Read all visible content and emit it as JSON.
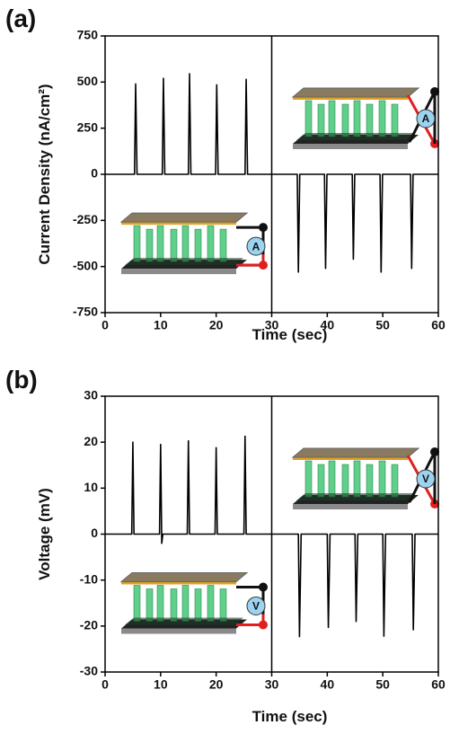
{
  "chart_data": [
    {
      "type": "line",
      "panel_label": "(a)",
      "x_label": "Time (sec)",
      "y_label": "Current Density (nA/cm²)",
      "x": [
        0,
        5.3,
        5.5,
        5.75,
        10.3,
        10.5,
        10.75,
        15.0,
        15.2,
        15.45,
        19.9,
        20.1,
        20.35,
        25.2,
        25.4,
        25.65,
        34.6,
        34.8,
        35.05,
        39.5,
        39.7,
        39.95,
        44.5,
        44.7,
        44.95,
        49.5,
        49.7,
        49.95,
        55.0,
        55.2,
        55.45,
        60
      ],
      "values": [
        0,
        0,
        490,
        0,
        0,
        520,
        0,
        0,
        545,
        0,
        0,
        485,
        0,
        0,
        515,
        0,
        0,
        -530,
        0,
        0,
        -510,
        0,
        0,
        -460,
        0,
        0,
        -530,
        0,
        0,
        -510,
        0,
        0
      ],
      "color": "#000000",
      "xlim": [
        0,
        60
      ],
      "xticks": [
        0,
        10,
        20,
        30,
        40,
        50,
        60
      ],
      "ylim": [
        -750,
        750
      ],
      "yticks": [
        -750,
        -500,
        -250,
        0,
        250,
        500,
        750
      ],
      "inset_labels": [
        "A",
        "A"
      ]
    },
    {
      "type": "line",
      "panel_label": "(b)",
      "x_label": "Time (sec)",
      "y_label": "Voltage (mV)",
      "x": [
        0,
        4.8,
        5.0,
        5.2,
        9.8,
        10.0,
        10.2,
        10.4,
        14.8,
        15.0,
        15.2,
        19.8,
        20.0,
        20.2,
        25.0,
        25.2,
        25.4,
        34.8,
        35.0,
        35.3,
        40.0,
        40.2,
        40.5,
        45.0,
        45.2,
        45.5,
        50.0,
        50.2,
        50.5,
        55.3,
        55.5,
        55.8,
        60
      ],
      "values": [
        0,
        0,
        20,
        0,
        0,
        19.5,
        -2,
        0,
        0,
        20.3,
        0,
        0,
        18.8,
        0,
        0,
        21.3,
        0,
        0,
        -22.3,
        0,
        0,
        -20.3,
        0,
        0,
        -19,
        0,
        0,
        -22.2,
        0,
        0,
        -20.8,
        0,
        0
      ],
      "color": "#000000",
      "xlim": [
        0,
        60
      ],
      "xticks": [
        0,
        10,
        20,
        30,
        40,
        50,
        60
      ],
      "ylim": [
        -30,
        30
      ],
      "yticks": [
        -30,
        -20,
        -10,
        0,
        10,
        20,
        30
      ],
      "inset_labels": [
        "V",
        "V"
      ]
    }
  ]
}
